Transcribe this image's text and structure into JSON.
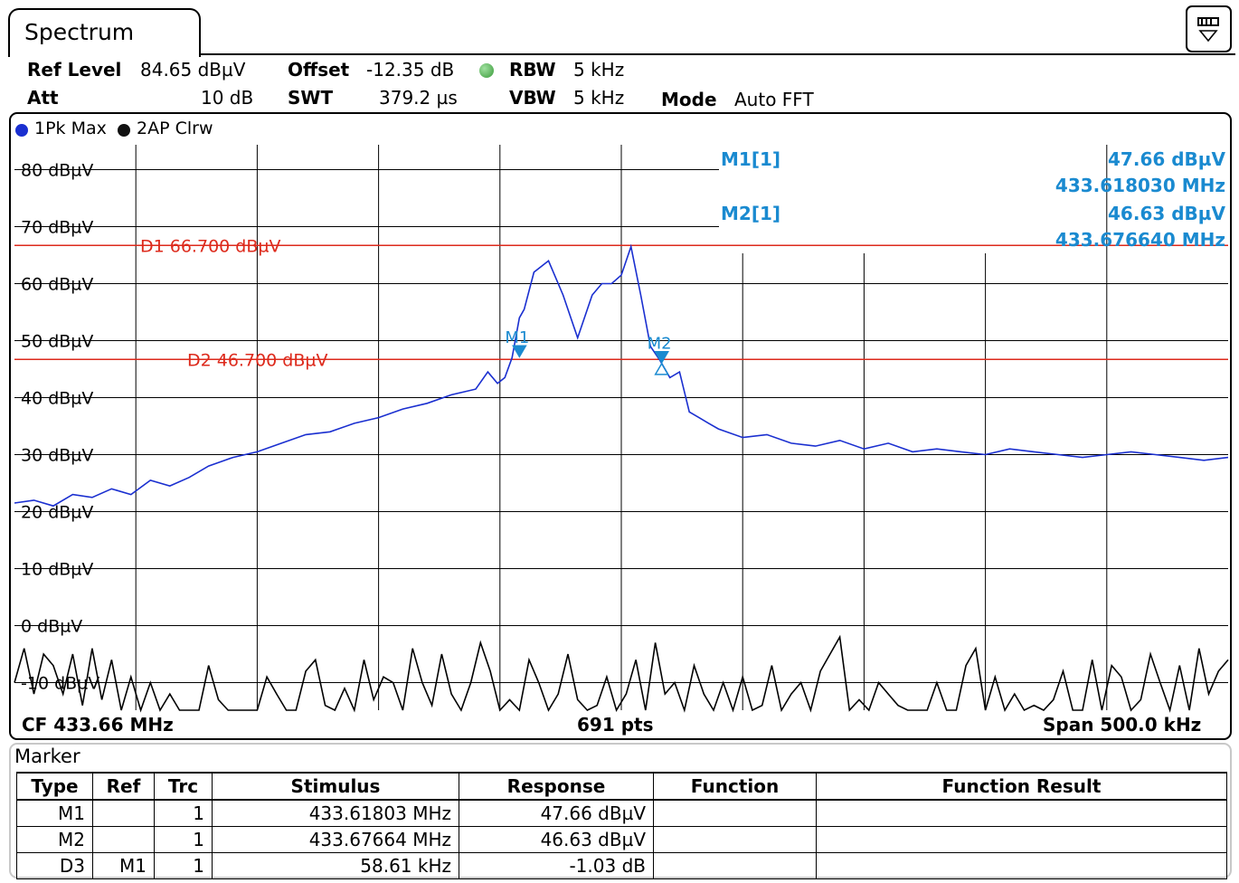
{
  "tab": {
    "title": "Spectrum"
  },
  "settings": {
    "ref_level_label": "Ref Level",
    "ref_level_value": "84.65 dBµV",
    "att_label": "Att",
    "att_value": "10 dB",
    "offset_label": "Offset",
    "offset_value": "-12.35 dB",
    "swt_label": "SWT",
    "swt_value": "379.2 µs",
    "rbw_label": "RBW",
    "rbw_value": "5 kHz",
    "vbw_label": "VBW",
    "vbw_value": "5 kHz",
    "mode_label": "Mode",
    "mode_value": "Auto FFT"
  },
  "traces": [
    {
      "label": "1Pk Max",
      "color": "#1a2fd0"
    },
    {
      "label": "2AP Clrw",
      "color": "#000000"
    }
  ],
  "footer": {
    "cf": "CF 433.66 MHz",
    "pts": "691 pts",
    "span": "Span 500.0 kHz"
  },
  "chart_data": {
    "type": "line",
    "x_unit": "MHz",
    "y_unit": "dBµV",
    "xlim": [
      433.41,
      433.91
    ],
    "ylim": [
      -15,
      85
    ],
    "grid": true,
    "y_ticks": [
      80,
      70,
      60,
      50,
      40,
      30,
      20,
      10,
      0,
      -10
    ],
    "y_tick_labels": [
      "80 dBµV",
      "70 dBµV",
      "60 dBµV",
      "50 dBµV",
      "40 dBµV",
      "30 dBµV",
      "20 dBµV",
      "10 dBµV",
      "0 dBµV",
      "-10 dBµV"
    ],
    "display_lines": [
      {
        "label": "D1",
        "text": "66.700 dBµV",
        "value": 66.7,
        "color": "#dd2a1c"
      },
      {
        "label": "D2",
        "text": "46.700 dBµV",
        "value": 46.7,
        "color": "#dd2a1c"
      }
    ],
    "markers": [
      {
        "label": "M1",
        "x": 433.61803,
        "y": 47.66,
        "shape": "down"
      },
      {
        "label": "M2",
        "x": 433.67664,
        "y": 46.63,
        "shape": "down"
      },
      {
        "label": "D3",
        "x": 433.67664,
        "y": 45.5,
        "shape": "up"
      }
    ],
    "marker_readouts": [
      {
        "label": "M1[1]",
        "level": "47.66 dBµV",
        "freq": "433.618030 MHz"
      },
      {
        "label": "M2[1]",
        "level": "46.63 dBµV",
        "freq": "433.676640 MHz"
      }
    ],
    "marker_color": "#1a8ad0",
    "series": [
      {
        "name": "1Pk Max",
        "color": "#1a2fd0",
        "x": [
          433.41,
          433.418,
          433.426,
          433.434,
          433.442,
          433.45,
          433.458,
          433.466,
          433.474,
          433.482,
          433.49,
          433.5,
          433.51,
          433.52,
          433.53,
          433.54,
          433.55,
          433.56,
          433.57,
          433.58,
          433.59,
          433.6,
          433.605,
          433.609,
          433.612,
          433.615,
          433.618,
          433.62,
          433.624,
          433.63,
          433.636,
          433.642,
          433.648,
          433.652,
          433.656,
          433.66,
          433.664,
          433.668,
          433.672,
          433.676,
          433.68,
          433.684,
          433.688,
          433.692,
          433.696,
          433.7,
          433.71,
          433.72,
          433.73,
          433.74,
          433.75,
          433.76,
          433.77,
          433.78,
          433.79,
          433.8,
          433.81,
          433.82,
          433.83,
          433.84,
          433.85,
          433.86,
          433.87,
          433.88,
          433.89,
          433.9,
          433.91
        ],
        "y": [
          21.5,
          22.0,
          21.0,
          23.0,
          22.5,
          24.0,
          23.0,
          25.5,
          24.5,
          26.0,
          28.0,
          29.5,
          30.5,
          32.0,
          33.5,
          34.0,
          35.5,
          36.5,
          38.0,
          39.0,
          40.5,
          41.5,
          44.5,
          42.5,
          43.5,
          47.0,
          54.0,
          55.5,
          62.0,
          64.0,
          58.0,
          50.5,
          58.0,
          60.0,
          60.0,
          61.5,
          66.5,
          58.0,
          49.0,
          46.5,
          43.5,
          44.5,
          37.5,
          36.5,
          35.5,
          34.5,
          33.0,
          33.5,
          32.0,
          31.5,
          32.5,
          31.0,
          32.0,
          30.5,
          31.0,
          30.5,
          30.0,
          31.0,
          30.5,
          30.0,
          29.5,
          30.0,
          30.5,
          30.0,
          29.5,
          29.0,
          29.5
        ]
      },
      {
        "name": "2AP Clrw",
        "color": "#000000",
        "x": [
          433.41,
          433.414,
          433.418,
          433.422,
          433.426,
          433.43,
          433.434,
          433.438,
          433.442,
          433.446,
          433.45,
          433.454,
          433.458,
          433.462,
          433.466,
          433.47,
          433.474,
          433.478,
          433.482,
          433.486,
          433.49,
          433.494,
          433.498,
          433.502,
          433.506,
          433.51,
          433.514,
          433.518,
          433.522,
          433.526,
          433.53,
          433.534,
          433.538,
          433.542,
          433.546,
          433.55,
          433.554,
          433.558,
          433.562,
          433.566,
          433.57,
          433.574,
          433.578,
          433.582,
          433.586,
          433.59,
          433.594,
          433.598,
          433.602,
          433.606,
          433.61,
          433.614,
          433.618,
          433.622,
          433.626,
          433.63,
          433.634,
          433.638,
          433.642,
          433.646,
          433.65,
          433.654,
          433.658,
          433.662,
          433.666,
          433.67,
          433.674,
          433.678,
          433.682,
          433.686,
          433.69,
          433.694,
          433.698,
          433.702,
          433.706,
          433.71,
          433.714,
          433.718,
          433.722,
          433.726,
          433.73,
          433.734,
          433.738,
          433.742,
          433.746,
          433.75,
          433.754,
          433.758,
          433.762,
          433.766,
          433.77,
          433.774,
          433.778,
          433.782,
          433.786,
          433.79,
          433.794,
          433.798,
          433.802,
          433.806,
          433.81,
          433.814,
          433.818,
          433.822,
          433.826,
          433.83,
          433.834,
          433.838,
          433.842,
          433.846,
          433.85,
          433.854,
          433.858,
          433.862,
          433.866,
          433.87,
          433.874,
          433.878,
          433.882,
          433.886,
          433.89,
          433.894,
          433.898,
          433.902,
          433.906,
          433.91
        ],
        "y": [
          -10,
          -4,
          -12,
          -5,
          -7,
          -12,
          -5,
          -14,
          -4,
          -13,
          -6,
          -15,
          -9,
          -15,
          -10,
          -15,
          -12,
          -15,
          -15,
          -15,
          -7,
          -13,
          -15,
          -15,
          -15,
          -15,
          -9,
          -12,
          -15,
          -15,
          -8,
          -6,
          -14,
          -15,
          -11,
          -15,
          -6,
          -13,
          -9,
          -10,
          -15,
          -4,
          -10,
          -14,
          -5,
          -12,
          -15,
          -10,
          -3,
          -8,
          -15,
          -13,
          -15,
          -6,
          -10,
          -15,
          -12,
          -5,
          -13,
          -15,
          -14,
          -9,
          -15,
          -12,
          -6,
          -15,
          -3,
          -12,
          -10,
          -15,
          -7,
          -12,
          -15,
          -10,
          -15,
          -9,
          -15,
          -14,
          -7,
          -15,
          -12,
          -10,
          -15,
          -8,
          -5,
          -2,
          -15,
          -13,
          -15,
          -10,
          -12,
          -14,
          -15,
          -15,
          -15,
          -10,
          -15,
          -15,
          -7,
          -4,
          -15,
          -9,
          -15,
          -12,
          -15,
          -14,
          -15,
          -13,
          -8,
          -15,
          -15,
          -6,
          -15,
          -7,
          -9,
          -15,
          -13,
          -5,
          -10,
          -15,
          -7,
          -15,
          -4,
          -12,
          -8,
          -6
        ]
      }
    ]
  },
  "marker_table": {
    "title": "Marker",
    "headers": [
      "Type",
      "Ref",
      "Trc",
      "Stimulus",
      "Response",
      "Function",
      "Function Result"
    ],
    "rows": [
      [
        "M1",
        "",
        "1",
        "433.61803 MHz",
        "47.66 dBµV",
        "",
        ""
      ],
      [
        "M2",
        "",
        "1",
        "433.67664 MHz",
        "46.63 dBµV",
        "",
        ""
      ],
      [
        "D3",
        "M1",
        "1",
        "58.61 kHz",
        "-1.03 dB",
        "",
        ""
      ]
    ]
  }
}
